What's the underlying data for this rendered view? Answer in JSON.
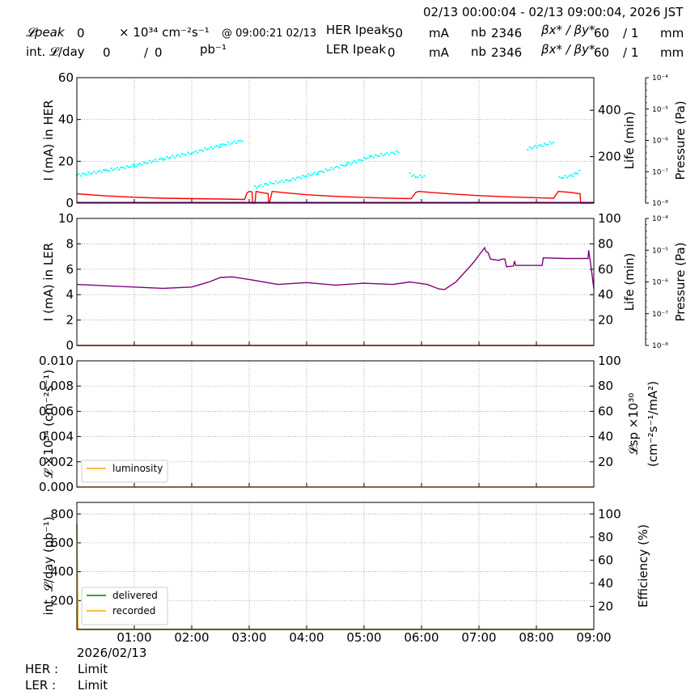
{
  "header": {
    "time_range": "02/13 00:00:04 - 02/13 09:00:04, 2026 JST",
    "lpeak_label": "𝓛peak",
    "lpeak_value": "0",
    "lpeak_unit": "× 10³⁴ cm⁻²s⁻¹",
    "lpeak_time": "@ 09:00:21 02/13",
    "intl_label": "int. 𝓛/day",
    "intl_value": "0",
    "intl_sep": "/",
    "intl_value2": "0",
    "intl_unit": "pb⁻¹",
    "her_label": "HER Ipeak",
    "her_value": "50",
    "her_unit": "mA",
    "ler_label": "LER Ipeak",
    "ler_value": "0",
    "ler_unit": "mA",
    "nb_label": "nb",
    "nb_her": "2346",
    "nb_ler": "2346",
    "beta_label": "βx* / βy*",
    "beta_her_x": "60",
    "beta_her_y": "/ 1",
    "beta_ler_x": "60",
    "beta_ler_y": "/ 1",
    "beta_unit": "mm"
  },
  "footer": {
    "date": "2026/02/13",
    "her_status_label": "HER :",
    "her_status": "Limit",
    "ler_status_label": "LER :",
    "ler_status": "Limit"
  },
  "colors": {
    "her_life": "#ff0000",
    "her_current": "#00ffff",
    "ler_life": "#800080",
    "luminosity": "#ffa500",
    "delivered": "#008000",
    "recorded": "#ffa500"
  },
  "chart_data": [
    {
      "type": "line",
      "ylabel": "I (mA) in HER",
      "ylabel2": "Life (min)",
      "ylabel3": "Pressure (Pa)",
      "ylim": [
        0,
        60
      ],
      "y2lim": [
        0,
        540
      ],
      "yticks": [
        0,
        20,
        40,
        60
      ],
      "y2ticks": [
        200,
        400
      ],
      "y3ticks": [
        "10⁻⁴",
        "10⁻⁵",
        "10⁻⁶",
        "10⁻⁷",
        "10⁻⁸"
      ],
      "xlim": [
        0,
        9
      ],
      "grid": true,
      "series": [
        {
          "values": [
            [
              0.0,
              40
            ],
            [
              0.5,
              31
            ],
            [
              1.0,
              25
            ],
            [
              1.5,
              21
            ],
            [
              2.0,
              19
            ],
            [
              2.5,
              17.5
            ],
            [
              2.9,
              15.8
            ],
            [
              2.92,
              15.5
            ],
            [
              2.96,
              43
            ],
            [
              3.0,
              50
            ],
            [
              3.05,
              48
            ],
            [
              3.06,
              0
            ],
            [
              3.1,
              0
            ],
            [
              3.12,
              50
            ],
            [
              3.2,
              46
            ],
            [
              3.3,
              42
            ],
            [
              3.33,
              41
            ],
            [
              3.34,
              0
            ],
            [
              3.35,
              0
            ],
            [
              3.4,
              50
            ],
            [
              3.6,
              45
            ],
            [
              4.0,
              36
            ],
            [
              4.5,
              29
            ],
            [
              5.0,
              24
            ],
            [
              5.5,
              20.5
            ],
            [
              5.8,
              19
            ],
            [
              5.82,
              19
            ],
            [
              5.9,
              46
            ],
            [
              5.95,
              50
            ],
            [
              6.2,
              45
            ],
            [
              6.6,
              38
            ],
            [
              7.0,
              32
            ],
            [
              7.5,
              27
            ],
            [
              8.0,
              23
            ],
            [
              8.2,
              21.5
            ],
            [
              8.3,
              21
            ],
            [
              8.38,
              50
            ],
            [
              8.6,
              46
            ],
            [
              8.76,
              40
            ],
            [
              8.77,
              0
            ],
            [
              9.0,
              0
            ]
          ]
        },
        {
          "values": [
            [
              0.0,
              13.3
            ],
            [
              0.5,
              15.5
            ],
            [
              1.0,
              17.9
            ],
            [
              1.5,
              21.2
            ],
            [
              2.0,
              24
            ],
            [
              2.5,
              27.5
            ],
            [
              2.88,
              30
            ],
            [
              3.0,
              13
            ],
            [
              3.1,
              7.5
            ],
            [
              3.3,
              9
            ],
            [
              3.7,
              11
            ],
            [
              4.2,
              14.5
            ],
            [
              4.7,
              18.5
            ],
            [
              5.1,
              22
            ],
            [
              5.6,
              24.5
            ],
            [
              5.8,
              14
            ],
            [
              5.9,
              12.5
            ],
            [
              6.05,
              13
            ],
            [
              7.85,
              26
            ],
            [
              8.3,
              29
            ],
            [
              8.4,
              12
            ],
            [
              8.6,
              13
            ],
            [
              8.75,
              15
            ]
          ]
        },
        {
          "values": [
            [
              0.0,
              0.3
            ],
            [
              9.0,
              0.3
            ]
          ]
        }
      ]
    },
    {
      "type": "line",
      "ylabel": "I (mA) in LER",
      "ylabel2": "Life (min)",
      "ylabel3": "Pressure (Pa)",
      "ylim": [
        0,
        10
      ],
      "y2lim": [
        0,
        100
      ],
      "yticks": [
        0,
        2,
        4,
        6,
        8,
        10
      ],
      "y2ticks": [
        20,
        40,
        60,
        80,
        100
      ],
      "y3ticks": [
        "10⁻⁴",
        "10⁻⁵",
        "10⁻⁶",
        "10⁻⁷",
        "10⁻⁸"
      ],
      "xlim": [
        0,
        9
      ],
      "grid": true,
      "series": [
        {
          "values": [
            [
              0.0,
              48
            ],
            [
              1.0,
              46
            ],
            [
              1.5,
              45
            ],
            [
              2.0,
              46
            ],
            [
              2.3,
              50
            ],
            [
              2.5,
              53.5
            ],
            [
              2.7,
              54
            ],
            [
              3.0,
              52
            ],
            [
              3.5,
              48
            ],
            [
              4.0,
              49.5
            ],
            [
              4.5,
              47.5
            ],
            [
              5.0,
              49
            ],
            [
              5.5,
              48
            ],
            [
              5.8,
              50
            ],
            [
              6.1,
              48
            ],
            [
              6.3,
              44.5
            ],
            [
              6.4,
              44
            ],
            [
              6.6,
              50
            ],
            [
              6.9,
              65
            ],
            [
              7.1,
              77
            ],
            [
              7.12,
              74
            ],
            [
              7.16,
              73
            ],
            [
              7.2,
              68
            ],
            [
              7.35,
              67
            ],
            [
              7.4,
              68
            ],
            [
              7.45,
              68
            ],
            [
              7.48,
              62
            ],
            [
              7.6,
              62.5
            ],
            [
              7.62,
              66.5
            ],
            [
              7.64,
              63
            ],
            [
              7.8,
              63
            ],
            [
              8.0,
              63
            ],
            [
              8.1,
              63
            ],
            [
              8.12,
              69
            ],
            [
              8.5,
              68.5
            ],
            [
              8.9,
              68.5
            ],
            [
              8.91,
              75
            ],
            [
              8.94,
              66
            ],
            [
              9.0,
              45
            ]
          ]
        },
        {
          "values": [
            [
              0.0,
              0
            ],
            [
              9.0,
              0
            ]
          ]
        }
      ]
    },
    {
      "type": "line",
      "ylabel": "𝓛 ×10³⁴ (cm⁻²s⁻¹)",
      "ylabel2": "𝓛sp ×10³⁰",
      "ylabel2b": "(cm⁻²s⁻¹/mA²)",
      "ylim": [
        0,
        0.01
      ],
      "y2lim": [
        0,
        100
      ],
      "yticks": [
        0.0,
        0.002,
        0.004,
        0.006,
        0.008,
        0.01
      ],
      "ytick_labels": [
        "0.000",
        "0.002",
        "0.004",
        "0.006",
        "0.008",
        "0.010"
      ],
      "y2ticks": [
        20,
        40,
        60,
        80,
        100
      ],
      "xlim": [
        0,
        9
      ],
      "grid": true,
      "legend": "lower-left",
      "series": [
        {
          "name": "luminosity",
          "values": [
            [
              0.0,
              0
            ],
            [
              9.0,
              0
            ]
          ]
        }
      ]
    },
    {
      "type": "line",
      "ylabel": "int. 𝓛/day (pb⁻¹)",
      "ylabel2": "Efficiency (%)",
      "ylim": [
        0,
        880
      ],
      "y2lim": [
        0,
        110
      ],
      "yticks": [
        200,
        400,
        600,
        800
      ],
      "y2ticks": [
        20,
        40,
        60,
        80,
        100
      ],
      "xlim": [
        0,
        9
      ],
      "xtick_labels": [
        "01:00",
        "02:00",
        "03:00",
        "04:00",
        "05:00",
        "06:00",
        "07:00",
        "08:00",
        "09:00"
      ],
      "grid": true,
      "legend": "lower-left",
      "series": [
        {
          "name": "delivered",
          "values": [
            [
              0.0,
              730
            ],
            [
              0.02,
              0
            ],
            [
              9.0,
              0
            ]
          ]
        },
        {
          "name": "recorded",
          "values": [
            [
              0.0,
              690
            ],
            [
              0.02,
              0
            ],
            [
              9.0,
              0
            ]
          ]
        }
      ]
    }
  ]
}
